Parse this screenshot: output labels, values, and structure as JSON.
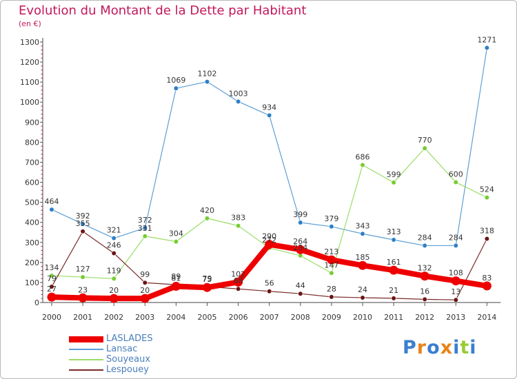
{
  "title": "Evolution du Montant de la Dette par Habitant",
  "unit": "(en €)",
  "logo_text": "Proxiti",
  "chart_data": {
    "type": "line",
    "title": "Evolution du Montant de la Dette par Habitant",
    "ylabel": "(en €)",
    "xlabel": "",
    "x": [
      "2000",
      "2001",
      "2002",
      "2003",
      "2004",
      "2005",
      "2006",
      "2007",
      "2008",
      "2009",
      "2010",
      "2011",
      "2012",
      "2013",
      "2014"
    ],
    "ylim": [
      0,
      1300
    ],
    "yticks": [
      0,
      100,
      200,
      300,
      400,
      500,
      600,
      700,
      800,
      900,
      1000,
      1100,
      1200,
      1300
    ],
    "grid": false,
    "legend_position": "bottom-left",
    "series": [
      {
        "name": "LASLADES",
        "color": "#ee0000",
        "dot": "#ee0000",
        "width": 8,
        "values": [
          27,
          23,
          20,
          20,
          81,
          75,
          102,
          290,
          264,
          213,
          185,
          161,
          132,
          108,
          83
        ]
      },
      {
        "name": "Lansac",
        "color": "#5c9fd6",
        "dot": "#2f7fc6",
        "width": 1.2,
        "values": [
          464,
          392,
          321,
          372,
          1069,
          1102,
          1003,
          934,
          399,
          379,
          343,
          313,
          284,
          284,
          1271
        ]
      },
      {
        "name": "Souyeaux",
        "color": "#99dd66",
        "dot": "#77cc33",
        "width": 1.2,
        "values": [
          134,
          127,
          119,
          331,
          304,
          420,
          383,
          272,
          234,
          147,
          686,
          599,
          770,
          600,
          524
        ]
      },
      {
        "name": "Lespouey",
        "color": "#7a2a2a",
        "dot": "#6b1414",
        "width": 1.2,
        "values": [
          79,
          355,
          246,
          99,
          89,
          79,
          68,
          56,
          44,
          28,
          24,
          21,
          16,
          13,
          318
        ]
      }
    ]
  }
}
